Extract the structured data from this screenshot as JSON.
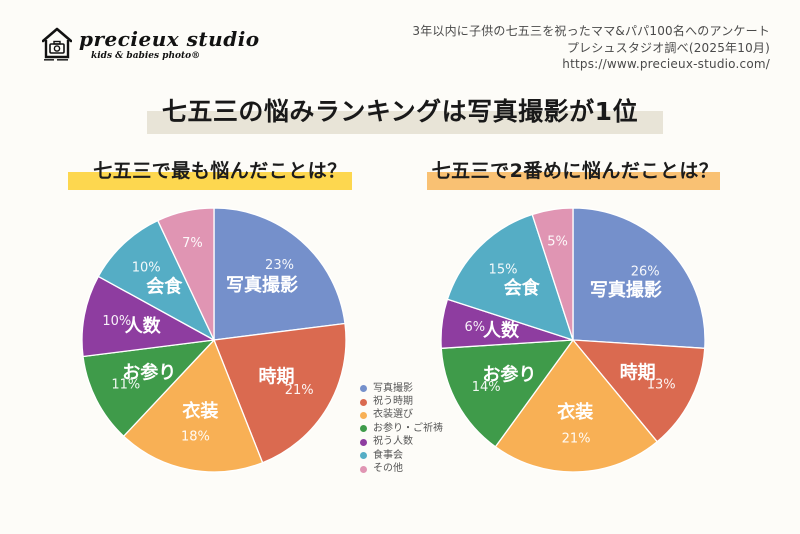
{
  "header": {
    "logo": {
      "name": "precieux studio",
      "tagline": "kids & babies photo®"
    },
    "info_lines": [
      "3年以内に子供の七五三を祝ったママ&パパ100名へのアンケート",
      "プレシュスタジオ調べ(2025年10月)",
      "https://www.precieux-studio.com/"
    ]
  },
  "title": "七五三の悩みランキングは写真撮影が1位",
  "theme": {
    "title_band_color": "#e8e4d7",
    "left_band_color": "#fdd74f",
    "right_band_color": "#f9c173",
    "background_color": "#fdfcf8"
  },
  "chart_data": [
    {
      "type": "pie",
      "title": "七五三で最も悩んだことは？",
      "categories": [
        "写真撮影",
        "祝う時期",
        "衣装選び",
        "お参り・ご祈祷",
        "祝う人数",
        "食事会",
        "その他"
      ],
      "slice_labels": [
        "写真撮影",
        "時期",
        "衣装",
        "お参り",
        "人数",
        "会食",
        ""
      ],
      "values": [
        23,
        21,
        18,
        11,
        10,
        10,
        7
      ],
      "unit": "%",
      "colors": [
        "#7590cb",
        "#da6a50",
        "#f8b055",
        "#3f9b4a",
        "#8e3da0",
        "#55adc5",
        "#e095b3"
      ],
      "start": "12-oclock",
      "direction": "clockwise",
      "labels_position": "inside",
      "legend_position": "center-between-charts"
    },
    {
      "type": "pie",
      "title": "七五三で2番めに悩んだことは？",
      "categories": [
        "写真撮影",
        "祝う時期",
        "衣装選び",
        "お参り・ご祈祷",
        "祝う人数",
        "食事会",
        "その他"
      ],
      "slice_labels": [
        "写真撮影",
        "時期",
        "衣装",
        "お参り",
        "人数",
        "会食",
        ""
      ],
      "values": [
        26,
        13,
        21,
        14,
        6,
        15,
        5
      ],
      "unit": "%",
      "colors": [
        "#7590cb",
        "#da6a50",
        "#f8b055",
        "#3f9b4a",
        "#8e3da0",
        "#55adc5",
        "#e095b3"
      ],
      "start": "12-oclock",
      "direction": "clockwise",
      "labels_position": "inside",
      "legend_position": "center-between-charts"
    }
  ],
  "legend": {
    "items": [
      {
        "label": "写真撮影",
        "color": "#7590cb"
      },
      {
        "label": "祝う時期",
        "color": "#da6a50"
      },
      {
        "label": "衣装選び",
        "color": "#f8b055"
      },
      {
        "label": "お参り・ご祈祷",
        "color": "#3f9b4a"
      },
      {
        "label": "祝う人数",
        "color": "#8e3da0"
      },
      {
        "label": "食事会",
        "color": "#55adc5"
      },
      {
        "label": "その他",
        "color": "#e095b3"
      }
    ]
  }
}
